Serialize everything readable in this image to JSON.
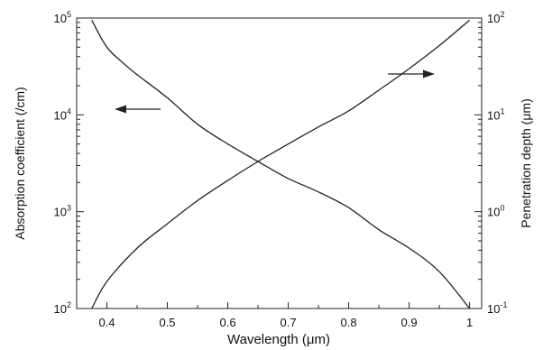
{
  "chart_data": {
    "type": "line",
    "title": "",
    "xlabel": "Wavelength (μm)",
    "ylabel_left": "Absorption coefficient (/cm)",
    "ylabel_right": "Penetration depth (μm)",
    "xlim": [
      0.35,
      1.02
    ],
    "x_ticks": [
      "0.4",
      "0.5",
      "0.6",
      "0.7",
      "0.8",
      "0.9",
      "1"
    ],
    "x_tick_values": [
      0.4,
      0.5,
      0.6,
      0.7,
      0.8,
      0.9,
      1.0
    ],
    "ylim_left": [
      100,
      100000
    ],
    "ylim_right": [
      0.1,
      100
    ],
    "y_scale": "log",
    "y_ticks_left": [
      {
        "base": "10",
        "exp": "2",
        "value": 100
      },
      {
        "base": "10",
        "exp": "3",
        "value": 1000
      },
      {
        "base": "10",
        "exp": "4",
        "value": 10000
      },
      {
        "base": "10",
        "exp": "5",
        "value": 100000
      }
    ],
    "y_ticks_right": [
      {
        "base": "10",
        "exp": "-1",
        "value": 0.1
      },
      {
        "base": "10",
        "exp": "0",
        "value": 1
      },
      {
        "base": "10",
        "exp": "1",
        "value": 10
      },
      {
        "base": "10",
        "exp": "2",
        "value": 100
      }
    ],
    "grid": false,
    "legend": "none",
    "series": [
      {
        "axis": "left",
        "x": [
          0.375,
          0.4,
          0.43,
          0.45,
          0.5,
          0.55,
          0.6,
          0.65,
          0.7,
          0.75,
          0.8,
          0.85,
          0.9,
          0.95,
          1.0
        ],
        "y": [
          95000,
          50000,
          33000,
          26000,
          15000,
          8000,
          5000,
          3300,
          2200,
          1600,
          1100,
          650,
          420,
          240,
          100
        ]
      },
      {
        "axis": "right",
        "x": [
          0.375,
          0.4,
          0.45,
          0.5,
          0.55,
          0.6,
          0.65,
          0.7,
          0.75,
          0.8,
          0.85,
          0.9,
          0.95,
          1.0
        ],
        "y": [
          0.1,
          0.19,
          0.42,
          0.75,
          1.3,
          2.1,
          3.3,
          5.0,
          7.5,
          11,
          18,
          30,
          52,
          95
        ]
      }
    ],
    "annotations": [
      {
        "type": "arrow",
        "direction": "left",
        "near": "absorption curve",
        "points_to": "left axis"
      },
      {
        "type": "arrow",
        "direction": "right",
        "near": "penetration curve",
        "points_to": "right axis"
      }
    ]
  }
}
